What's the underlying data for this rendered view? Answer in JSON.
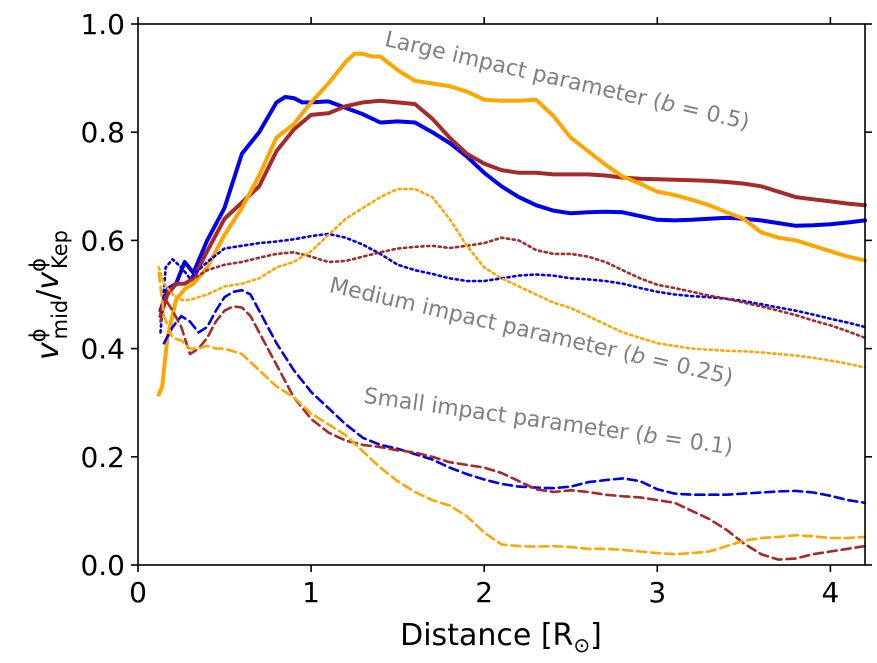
{
  "chart_data": {
    "type": "line",
    "xlabel_main": "Distance [R",
    "xlabel_sub": "⊙",
    "xlabel_end": "]",
    "ylabel_parts": {
      "v": "v",
      "phi": "ϕ",
      "mid": "mid",
      "slash": "/",
      "kep": "Kep"
    },
    "xlim": [
      0,
      4.2
    ],
    "ylim": [
      0,
      1.0
    ],
    "xticks": [
      0,
      1,
      2,
      3,
      4
    ],
    "yticks": [
      0.0,
      0.2,
      0.4,
      0.6,
      0.8,
      1.0
    ],
    "xtick_labels": [
      "0",
      "1",
      "2",
      "3",
      "4"
    ],
    "ytick_labels": [
      "0.0",
      "0.2",
      "0.4",
      "0.6",
      "0.8",
      "1.0"
    ],
    "annotations": [
      {
        "id": "large",
        "text": "Large impact parameter (b = 0.5)",
        "prefix": "Large impact parameter (",
        "var": "b",
        "suffix": " = 0.5)",
        "x": 1.42,
        "y": 0.96,
        "angle": 13
      },
      {
        "id": "medium",
        "text": "Medium impact parameter (b = 0.25)",
        "prefix": "Medium impact parameter (",
        "var": "b",
        "suffix": " = 0.25)",
        "x": 1.1,
        "y": 0.505,
        "angle": 13
      },
      {
        "id": "small",
        "text": "Small impact parameter (b = 0.1)",
        "prefix": "Small impact parameter (",
        "var": "b",
        "suffix": " = 0.1)",
        "x": 1.3,
        "y": 0.3,
        "angle": 8
      }
    ],
    "colors": {
      "blue": "#0000ee",
      "brown": "#a52a2a",
      "orange": "#ffa500",
      "annot": "#808080"
    },
    "series": [
      {
        "name": "blue-solid",
        "color": "#0000ee",
        "style": "solid",
        "width": 4,
        "x": [
          0.13,
          0.17,
          0.22,
          0.27,
          0.32,
          0.4,
          0.5,
          0.6,
          0.7,
          0.8,
          0.85,
          0.9,
          0.95,
          1.0,
          1.1,
          1.2,
          1.3,
          1.4,
          1.5,
          1.6,
          1.7,
          1.8,
          1.9,
          2.0,
          2.1,
          2.2,
          2.3,
          2.4,
          2.5,
          2.6,
          2.7,
          2.8,
          2.9,
          3.0,
          3.1,
          3.2,
          3.3,
          3.4,
          3.5,
          3.6,
          3.7,
          3.8,
          3.9,
          4.0,
          4.1,
          4.2
        ],
        "y": [
          0.47,
          0.51,
          0.52,
          0.56,
          0.54,
          0.6,
          0.66,
          0.76,
          0.8,
          0.855,
          0.865,
          0.863,
          0.855,
          0.855,
          0.857,
          0.845,
          0.833,
          0.818,
          0.82,
          0.818,
          0.8,
          0.78,
          0.755,
          0.725,
          0.7,
          0.68,
          0.665,
          0.655,
          0.65,
          0.652,
          0.653,
          0.652,
          0.645,
          0.638,
          0.637,
          0.638,
          0.64,
          0.642,
          0.64,
          0.637,
          0.632,
          0.627,
          0.628,
          0.63,
          0.633,
          0.637
        ]
      },
      {
        "name": "brown-solid",
        "color": "#a52a2a",
        "style": "solid",
        "width": 4,
        "x": [
          0.13,
          0.17,
          0.22,
          0.27,
          0.32,
          0.4,
          0.5,
          0.6,
          0.7,
          0.8,
          0.9,
          1.0,
          1.1,
          1.2,
          1.3,
          1.4,
          1.5,
          1.6,
          1.7,
          1.8,
          1.9,
          2.0,
          2.1,
          2.2,
          2.3,
          2.4,
          2.5,
          2.6,
          2.7,
          2.8,
          2.9,
          3.0,
          3.1,
          3.2,
          3.3,
          3.4,
          3.5,
          3.6,
          3.7,
          3.8,
          3.9,
          4.0,
          4.1,
          4.2
        ],
        "y": [
          0.46,
          0.5,
          0.52,
          0.52,
          0.53,
          0.58,
          0.64,
          0.67,
          0.7,
          0.765,
          0.805,
          0.832,
          0.835,
          0.848,
          0.855,
          0.858,
          0.855,
          0.852,
          0.825,
          0.79,
          0.76,
          0.742,
          0.73,
          0.725,
          0.725,
          0.722,
          0.722,
          0.722,
          0.72,
          0.716,
          0.714,
          0.713,
          0.712,
          0.711,
          0.71,
          0.708,
          0.705,
          0.7,
          0.69,
          0.68,
          0.676,
          0.672,
          0.668,
          0.665
        ]
      },
      {
        "name": "orange-solid",
        "color": "#ffa500",
        "style": "solid",
        "width": 4,
        "x": [
          0.12,
          0.14,
          0.17,
          0.22,
          0.27,
          0.32,
          0.4,
          0.5,
          0.6,
          0.7,
          0.8,
          0.9,
          1.0,
          1.1,
          1.2,
          1.25,
          1.3,
          1.35,
          1.4,
          1.5,
          1.6,
          1.7,
          1.8,
          1.9,
          2.0,
          2.1,
          2.2,
          2.3,
          2.4,
          2.5,
          2.6,
          2.7,
          2.8,
          2.9,
          3.0,
          3.1,
          3.2,
          3.3,
          3.4,
          3.5,
          3.6,
          3.7,
          3.8,
          3.9,
          4.0,
          4.1,
          4.2
        ],
        "y": [
          0.315,
          0.33,
          0.42,
          0.49,
          0.51,
          0.52,
          0.55,
          0.61,
          0.66,
          0.72,
          0.79,
          0.815,
          0.855,
          0.89,
          0.93,
          0.945,
          0.945,
          0.94,
          0.94,
          0.915,
          0.895,
          0.89,
          0.885,
          0.875,
          0.86,
          0.858,
          0.858,
          0.86,
          0.83,
          0.79,
          0.765,
          0.74,
          0.718,
          0.705,
          0.69,
          0.684,
          0.675,
          0.665,
          0.652,
          0.64,
          0.615,
          0.605,
          0.6,
          0.59,
          0.58,
          0.57,
          0.563
        ]
      },
      {
        "name": "blue-dotted",
        "color": "#0000ee",
        "style": "dotted",
        "width": 2.6,
        "x": [
          0.13,
          0.16,
          0.2,
          0.25,
          0.3,
          0.4,
          0.5,
          0.6,
          0.7,
          0.8,
          0.9,
          1.0,
          1.1,
          1.2,
          1.3,
          1.4,
          1.5,
          1.6,
          1.7,
          1.8,
          1.9,
          2.0,
          2.1,
          2.2,
          2.3,
          2.4,
          2.5,
          2.6,
          2.7,
          2.8,
          2.9,
          3.0,
          3.1,
          3.2,
          3.3,
          3.4,
          3.5,
          3.6,
          3.7,
          3.8,
          3.9,
          4.0,
          4.1,
          4.2
        ],
        "y": [
          0.43,
          0.55,
          0.565,
          0.55,
          0.53,
          0.56,
          0.585,
          0.59,
          0.595,
          0.598,
          0.602,
          0.608,
          0.612,
          0.605,
          0.592,
          0.575,
          0.555,
          0.545,
          0.538,
          0.53,
          0.525,
          0.525,
          0.53,
          0.535,
          0.537,
          0.535,
          0.53,
          0.528,
          0.525,
          0.52,
          0.512,
          0.505,
          0.5,
          0.497,
          0.495,
          0.492,
          0.488,
          0.482,
          0.476,
          0.47,
          0.463,
          0.455,
          0.448,
          0.44
        ]
      },
      {
        "name": "brown-dotted",
        "color": "#a52a2a",
        "style": "dotted",
        "width": 2.6,
        "x": [
          0.13,
          0.16,
          0.2,
          0.25,
          0.3,
          0.4,
          0.5,
          0.6,
          0.7,
          0.8,
          0.9,
          1.0,
          1.1,
          1.2,
          1.3,
          1.4,
          1.5,
          1.6,
          1.7,
          1.8,
          1.9,
          2.0,
          2.1,
          2.2,
          2.3,
          2.4,
          2.5,
          2.6,
          2.7,
          2.8,
          2.9,
          3.0,
          3.1,
          3.2,
          3.3,
          3.4,
          3.5,
          3.6,
          3.7,
          3.8,
          3.9,
          4.0,
          4.1,
          4.2
        ],
        "y": [
          0.45,
          0.5,
          0.515,
          0.52,
          0.525,
          0.545,
          0.555,
          0.56,
          0.568,
          0.575,
          0.578,
          0.57,
          0.56,
          0.562,
          0.57,
          0.578,
          0.585,
          0.588,
          0.59,
          0.586,
          0.59,
          0.595,
          0.605,
          0.6,
          0.582,
          0.575,
          0.575,
          0.57,
          0.56,
          0.545,
          0.53,
          0.518,
          0.512,
          0.505,
          0.498,
          0.492,
          0.485,
          0.478,
          0.47,
          0.462,
          0.452,
          0.443,
          0.432,
          0.42
        ]
      },
      {
        "name": "orange-dotted",
        "color": "#ffa500",
        "style": "dotted",
        "width": 2.6,
        "x": [
          0.12,
          0.15,
          0.2,
          0.25,
          0.3,
          0.4,
          0.5,
          0.6,
          0.7,
          0.8,
          0.9,
          1.0,
          1.1,
          1.2,
          1.3,
          1.4,
          1.5,
          1.6,
          1.7,
          1.8,
          1.9,
          2.0,
          2.1,
          2.2,
          2.3,
          2.4,
          2.5,
          2.6,
          2.7,
          2.8,
          2.9,
          3.0,
          3.1,
          3.2,
          3.3,
          3.4,
          3.5,
          3.6,
          3.7,
          3.8,
          3.9,
          4.0,
          4.1,
          4.2
        ],
        "y": [
          0.55,
          0.52,
          0.5,
          0.49,
          0.49,
          0.5,
          0.515,
          0.52,
          0.53,
          0.55,
          0.56,
          0.58,
          0.61,
          0.64,
          0.66,
          0.68,
          0.695,
          0.695,
          0.68,
          0.64,
          0.59,
          0.55,
          0.53,
          0.515,
          0.5,
          0.485,
          0.475,
          0.46,
          0.445,
          0.43,
          0.42,
          0.41,
          0.405,
          0.4,
          0.398,
          0.396,
          0.395,
          0.393,
          0.39,
          0.387,
          0.383,
          0.378,
          0.372,
          0.365
        ]
      },
      {
        "name": "blue-dashed",
        "color": "#0000ee",
        "style": "dashed",
        "width": 2.6,
        "x": [
          0.15,
          0.2,
          0.25,
          0.3,
          0.35,
          0.4,
          0.45,
          0.5,
          0.55,
          0.6,
          0.65,
          0.7,
          0.8,
          0.9,
          1.0,
          1.1,
          1.2,
          1.3,
          1.4,
          1.5,
          1.6,
          1.7,
          1.8,
          1.9,
          2.0,
          2.1,
          2.2,
          2.3,
          2.4,
          2.5,
          2.6,
          2.7,
          2.8,
          2.9,
          3.0,
          3.1,
          3.2,
          3.3,
          3.4,
          3.5,
          3.6,
          3.7,
          3.8,
          3.9,
          4.0,
          4.1,
          4.2
        ],
        "y": [
          0.41,
          0.44,
          0.46,
          0.45,
          0.43,
          0.44,
          0.47,
          0.495,
          0.505,
          0.508,
          0.5,
          0.47,
          0.41,
          0.36,
          0.32,
          0.29,
          0.26,
          0.235,
          0.222,
          0.215,
          0.205,
          0.195,
          0.18,
          0.168,
          0.158,
          0.15,
          0.145,
          0.143,
          0.142,
          0.145,
          0.153,
          0.157,
          0.16,
          0.155,
          0.14,
          0.132,
          0.13,
          0.13,
          0.13,
          0.132,
          0.134,
          0.136,
          0.137,
          0.134,
          0.128,
          0.12,
          0.115
        ]
      },
      {
        "name": "brown-dashed",
        "color": "#a52a2a",
        "style": "dashed",
        "width": 2.6,
        "x": [
          0.13,
          0.16,
          0.2,
          0.25,
          0.3,
          0.35,
          0.4,
          0.45,
          0.5,
          0.55,
          0.6,
          0.65,
          0.7,
          0.8,
          0.9,
          1.0,
          1.1,
          1.2,
          1.3,
          1.4,
          1.5,
          1.6,
          1.7,
          1.8,
          1.9,
          2.0,
          2.1,
          2.2,
          2.3,
          2.4,
          2.5,
          2.6,
          2.7,
          2.8,
          2.9,
          3.0,
          3.1,
          3.2,
          3.3,
          3.4,
          3.5,
          3.6,
          3.7,
          3.8,
          3.9,
          4.0,
          4.1,
          4.2
        ],
        "y": [
          0.47,
          0.49,
          0.47,
          0.44,
          0.39,
          0.4,
          0.42,
          0.45,
          0.47,
          0.478,
          0.476,
          0.46,
          0.43,
          0.37,
          0.31,
          0.27,
          0.245,
          0.23,
          0.222,
          0.218,
          0.212,
          0.208,
          0.2,
          0.19,
          0.185,
          0.18,
          0.17,
          0.155,
          0.14,
          0.135,
          0.138,
          0.135,
          0.13,
          0.127,
          0.125,
          0.12,
          0.115,
          0.1,
          0.085,
          0.065,
          0.04,
          0.02,
          0.01,
          0.012,
          0.02,
          0.025,
          0.03,
          0.035
        ]
      },
      {
        "name": "orange-dashed",
        "color": "#ffa500",
        "style": "dashed",
        "width": 2.6,
        "x": [
          0.12,
          0.15,
          0.2,
          0.25,
          0.3,
          0.35,
          0.4,
          0.45,
          0.5,
          0.55,
          0.6,
          0.7,
          0.8,
          0.9,
          1.0,
          1.1,
          1.2,
          1.3,
          1.4,
          1.5,
          1.6,
          1.7,
          1.8,
          1.9,
          2.0,
          2.1,
          2.2,
          2.3,
          2.4,
          2.5,
          2.6,
          2.7,
          2.8,
          2.9,
          3.0,
          3.1,
          3.2,
          3.3,
          3.4,
          3.5,
          3.6,
          3.7,
          3.8,
          3.9,
          4.0,
          4.1,
          4.2
        ],
        "y": [
          0.54,
          0.46,
          0.42,
          0.415,
          0.4,
          0.4,
          0.405,
          0.4,
          0.4,
          0.395,
          0.39,
          0.36,
          0.33,
          0.31,
          0.28,
          0.26,
          0.24,
          0.21,
          0.18,
          0.155,
          0.135,
          0.12,
          0.11,
          0.09,
          0.06,
          0.038,
          0.035,
          0.034,
          0.035,
          0.033,
          0.03,
          0.03,
          0.028,
          0.025,
          0.022,
          0.02,
          0.022,
          0.025,
          0.035,
          0.045,
          0.05,
          0.052,
          0.055,
          0.053,
          0.05,
          0.05,
          0.052
        ]
      }
    ]
  }
}
